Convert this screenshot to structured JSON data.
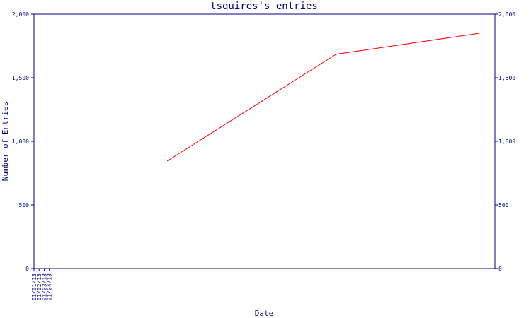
{
  "chart_data": {
    "type": "line",
    "title": "tsquires's entries",
    "xlabel": "Date",
    "ylabel": "Number of Entries",
    "x_ticks": [
      "01/01/13",
      "01/02/13",
      "01/03/13",
      "01/04/13"
    ],
    "y_ticks": [
      "0",
      "500",
      "1,000",
      "1,500",
      "2,000"
    ],
    "ylim": [
      0,
      2000
    ],
    "xlim": [
      "2013-01-01",
      "2013-04-01"
    ],
    "grid": false,
    "series": [
      {
        "color": "#ff0000",
        "x": [
          "2013-01-27",
          "2013-03-01",
          "2013-03-29"
        ],
        "y": [
          845,
          1685,
          1850
        ]
      }
    ],
    "axis_color": "#000080",
    "text_color": "#000080"
  }
}
